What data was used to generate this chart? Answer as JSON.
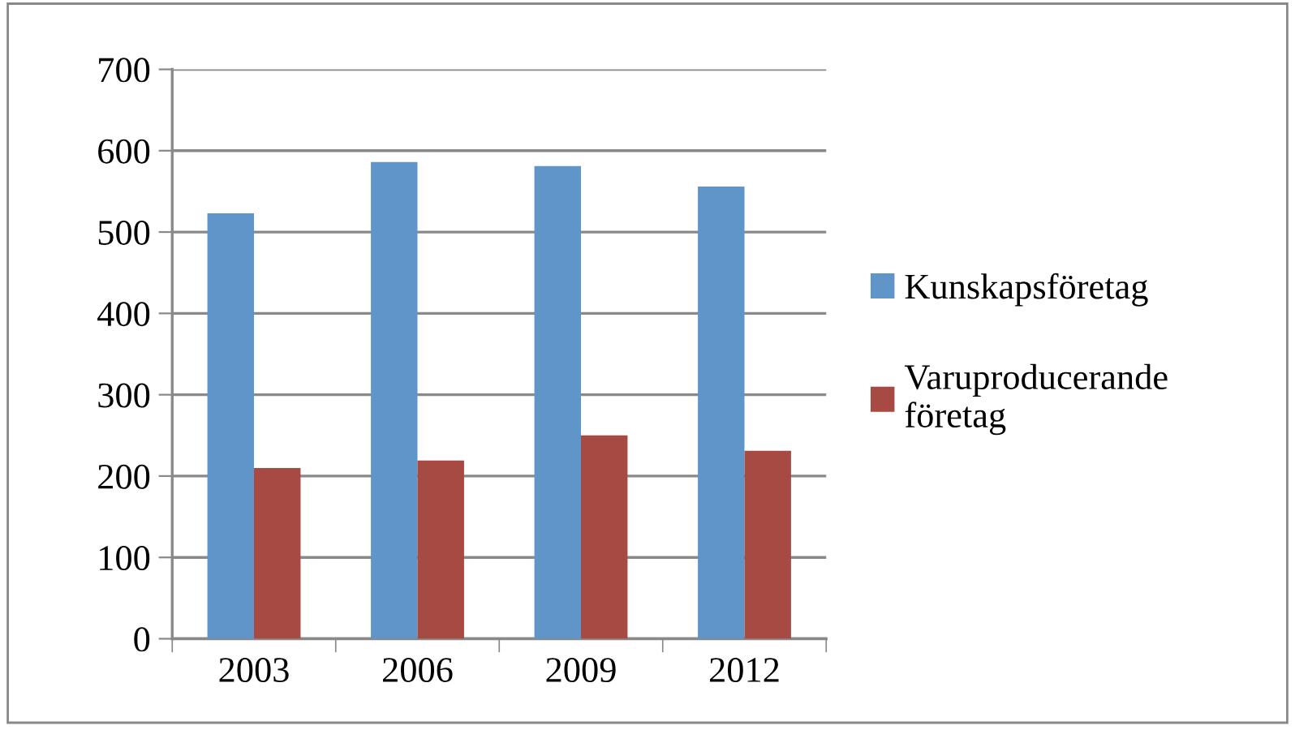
{
  "chart_data": {
    "type": "bar",
    "categories": [
      "2003",
      "2006",
      "2009",
      "2012"
    ],
    "series": [
      {
        "name": "Kunskapsföretag",
        "color": "#5f95c9",
        "values": [
          523,
          586,
          581,
          556
        ]
      },
      {
        "name": "Varuproducerande\nföretag",
        "color": "#a84a44",
        "values": [
          210,
          219,
          250,
          231
        ]
      }
    ],
    "ylim": [
      0,
      700
    ],
    "yticks": [
      0,
      100,
      200,
      300,
      400,
      500,
      600,
      700
    ],
    "grid": "y",
    "legend": "right"
  }
}
